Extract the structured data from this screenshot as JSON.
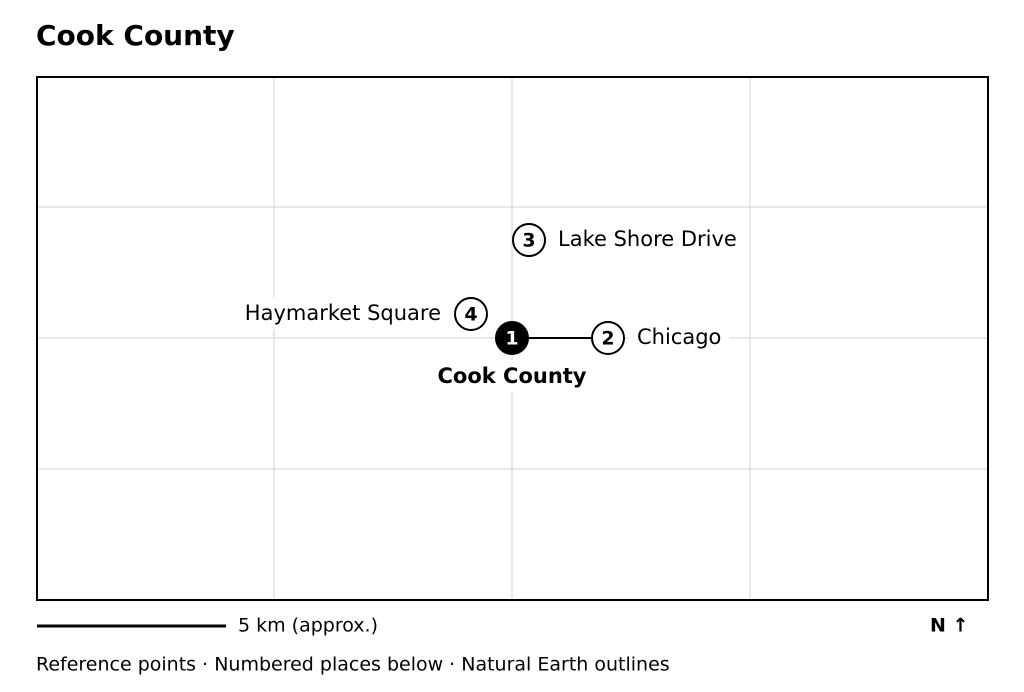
{
  "title": "Cook County",
  "places": [
    {
      "number": 1,
      "label": "Cook County"
    },
    {
      "number": 2,
      "label": "Chicago"
    },
    {
      "number": 3,
      "label": "Lake Shore Drive"
    },
    {
      "number": 4,
      "label": "Haymarket Square"
    }
  ],
  "scale_label": "5 km (approx.)",
  "north_label": "N ↑",
  "caption": "Reference points · Numbered places below · Natural Earth outlines"
}
